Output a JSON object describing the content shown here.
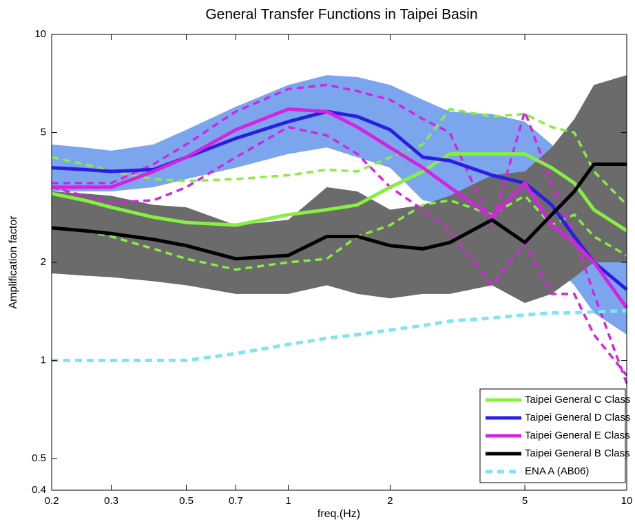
{
  "chart_data": {
    "type": "line",
    "title": "General Transfer Functions in Taipei Basin",
    "x_label": "freq.(Hz)",
    "y_label": "Amplification factor",
    "x_scale": "log",
    "y_scale": "log",
    "xlim": [
      0.2,
      10
    ],
    "ylim": [
      0.4,
      10
    ],
    "xticks": [
      0.2,
      0.3,
      0.5,
      0.7,
      1,
      2,
      5,
      10
    ],
    "yticks": [
      0.4,
      0.5,
      1,
      2,
      5,
      10
    ],
    "legend": "lower right",
    "x": [
      0.2,
      0.25,
      0.3,
      0.4,
      0.5,
      0.7,
      1,
      1.3,
      1.6,
      2,
      2.5,
      3,
      4,
      5,
      6,
      7,
      8,
      10
    ],
    "bands": [
      {
        "color": "#7ba6ee",
        "upper": [
          4.6,
          4.5,
          4.4,
          4.6,
          5.1,
          6.0,
          7.0,
          7.5,
          7.4,
          7.0,
          6.3,
          5.8,
          5.7,
          5.4,
          4.6,
          3.8,
          3.0,
          2.5
        ],
        "lower": [
          3.3,
          3.3,
          3.3,
          3.4,
          3.6,
          3.9,
          4.3,
          4.5,
          4.2,
          3.9,
          3.1,
          3.0,
          2.6,
          2.4,
          2.0,
          1.7,
          1.4,
          1.2
        ]
      },
      {
        "color": "#6b6b6b",
        "upper": [
          3.3,
          3.25,
          3.2,
          3.0,
          2.95,
          2.6,
          2.7,
          3.4,
          3.3,
          2.9,
          3.0,
          3.2,
          3.7,
          3.8,
          4.5,
          5.5,
          7.0,
          7.5
        ],
        "lower": [
          1.85,
          1.82,
          1.8,
          1.75,
          1.7,
          1.6,
          1.6,
          1.7,
          1.6,
          1.55,
          1.6,
          1.6,
          1.7,
          1.5,
          1.6,
          1.8,
          2.0,
          2.0
        ]
      }
    ],
    "series": [
      {
        "color": "#86ef3f",
        "dash": true,
        "values": [
          4.2,
          4.0,
          3.8,
          3.6,
          3.55,
          3.6,
          3.7,
          3.85,
          3.8,
          4.2,
          4.6,
          5.9,
          5.6,
          5.7,
          5.2,
          5.0,
          3.8,
          3.0
        ]
      },
      {
        "color": "#86ef3f",
        "dash": true,
        "values": [
          2.55,
          2.5,
          2.4,
          2.2,
          2.05,
          1.9,
          2.0,
          2.05,
          2.4,
          2.6,
          3.0,
          3.1,
          2.8,
          3.2,
          2.6,
          2.8,
          2.4,
          2.1
        ]
      },
      {
        "color": "#d424e0",
        "dash": true,
        "values": [
          3.5,
          3.5,
          3.5,
          4.0,
          4.6,
          5.8,
          6.8,
          7.0,
          6.7,
          6.3,
          5.5,
          5.0,
          2.6,
          5.8,
          3.5,
          2.4,
          1.6,
          0.85
        ]
      },
      {
        "color": "#d424e0",
        "dash": true,
        "values": [
          3.4,
          3.2,
          3.05,
          3.1,
          3.4,
          4.2,
          5.2,
          4.9,
          4.3,
          3.4,
          2.9,
          2.5,
          1.7,
          2.3,
          1.6,
          1.6,
          1.2,
          0.9
        ]
      },
      {
        "name": "Taipei General C Class",
        "color": "#86ef3f",
        "values": [
          3.25,
          3.1,
          2.95,
          2.75,
          2.65,
          2.6,
          2.8,
          2.9,
          3.0,
          3.4,
          3.8,
          4.3,
          4.3,
          4.3,
          3.9,
          3.5,
          2.9,
          2.5
        ]
      },
      {
        "name": "Taipei General D Class",
        "color": "#2a1fe0",
        "values": [
          3.9,
          3.85,
          3.8,
          3.85,
          4.2,
          4.8,
          5.4,
          5.8,
          5.6,
          5.1,
          4.2,
          4.1,
          3.7,
          3.5,
          3.0,
          2.4,
          2.0,
          1.65
        ]
      },
      {
        "name": "Taipei General E Class",
        "color": "#d424e0",
        "values": [
          3.4,
          3.4,
          3.4,
          3.8,
          4.2,
          5.1,
          5.9,
          5.8,
          5.2,
          4.5,
          3.9,
          3.4,
          2.75,
          3.5,
          2.6,
          2.3,
          2.0,
          1.45
        ]
      },
      {
        "name": "Taipei General B Class",
        "color": "#000000",
        "values": [
          2.55,
          2.5,
          2.45,
          2.35,
          2.25,
          2.05,
          2.1,
          2.4,
          2.4,
          2.25,
          2.2,
          2.3,
          2.7,
          2.3,
          2.8,
          3.3,
          4.0,
          4.0
        ]
      },
      {
        "name": "ENA A (AB06)",
        "color": "#7ee6f0",
        "dash": true,
        "values": [
          1,
          1,
          1,
          1,
          1,
          1.05,
          1.12,
          1.17,
          1.2,
          1.24,
          1.28,
          1.32,
          1.35,
          1.38,
          1.4,
          1.4,
          1.41,
          1.42
        ]
      }
    ]
  }
}
